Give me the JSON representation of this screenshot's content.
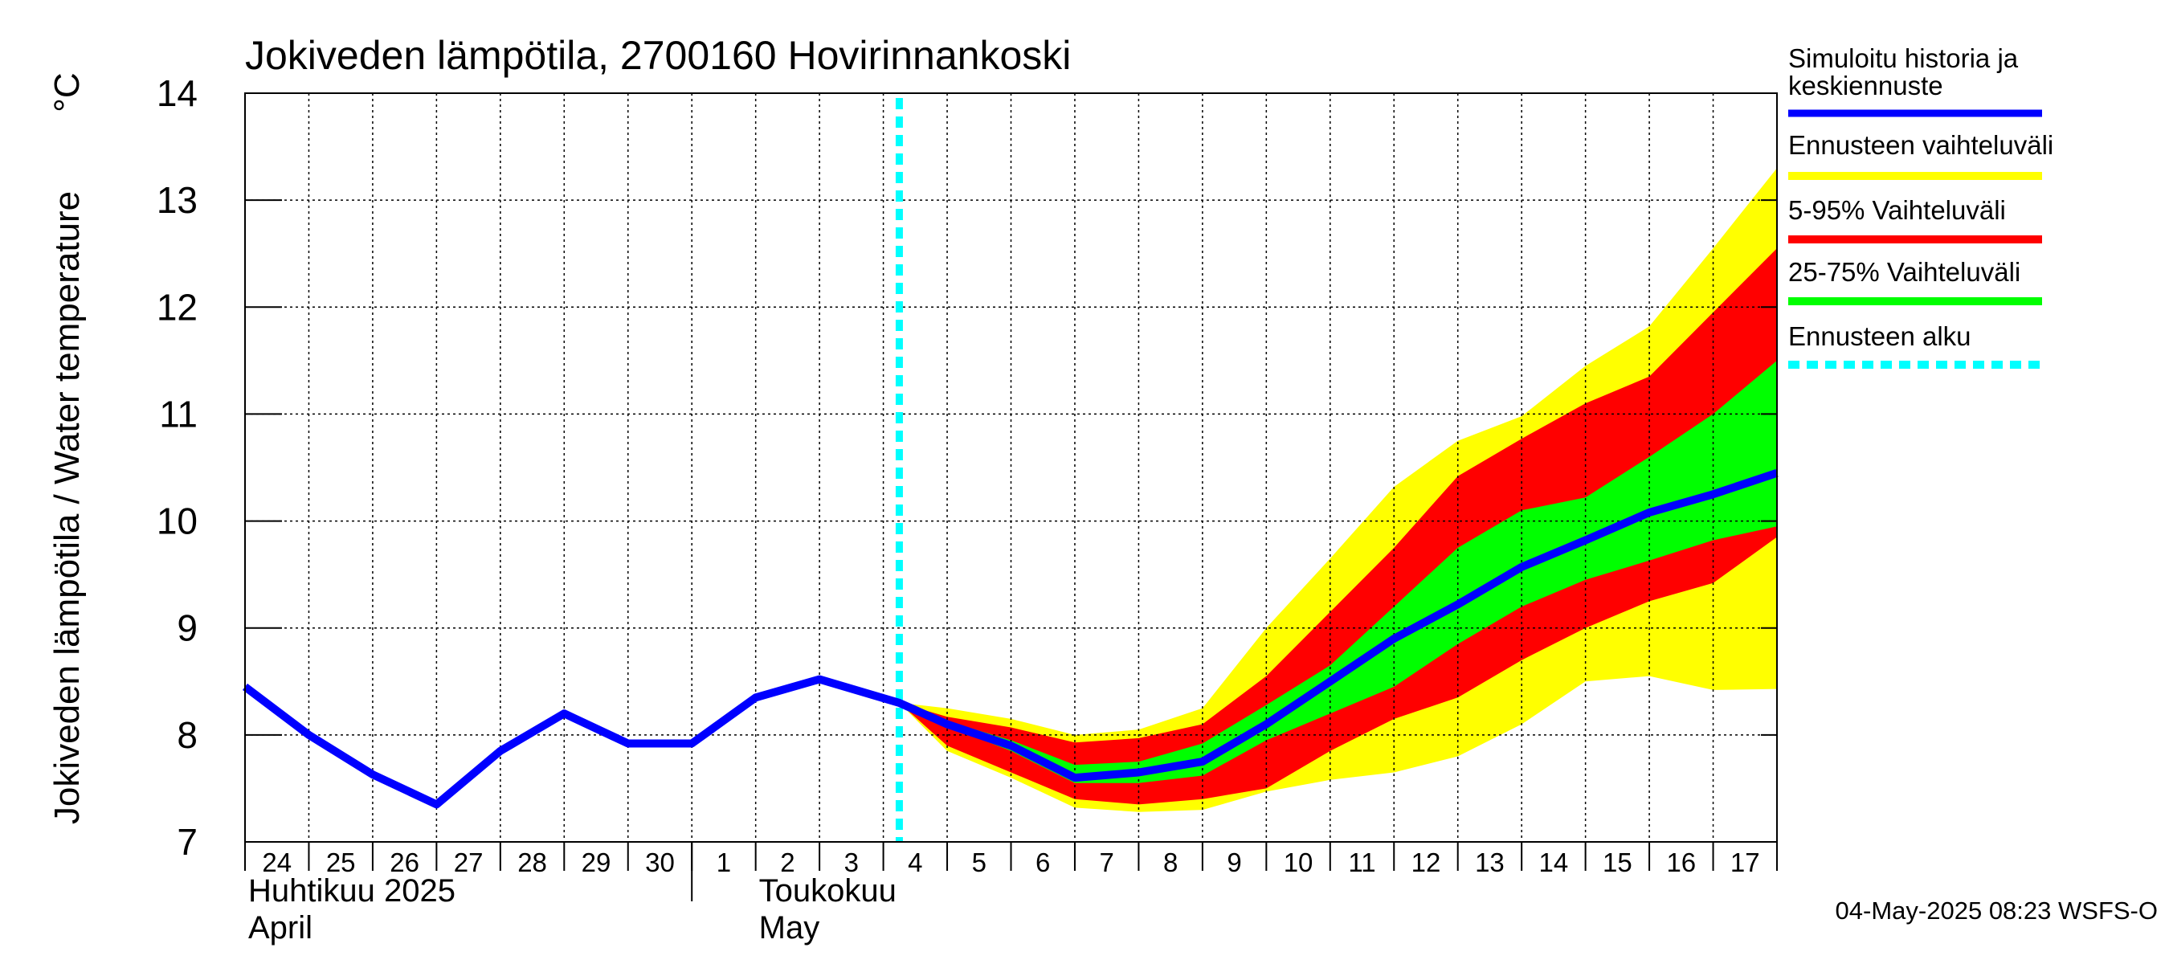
{
  "chart_data": {
    "type": "area",
    "title": "Jokiveden lämpötila, 2700160 Hovirinnankoski",
    "ylabel": "Jokiveden lämpötila / Water temperature",
    "yunit": "°C",
    "ylim": [
      7,
      14
    ],
    "yticks": [
      "7",
      "8",
      "9",
      "10",
      "11",
      "12",
      "13",
      "14"
    ],
    "xlim": [
      0,
      24
    ],
    "xtick_labels": [
      "24",
      "25",
      "26",
      "27",
      "28",
      "29",
      "30",
      "1",
      "2",
      "3",
      "4",
      "5",
      "6",
      "7",
      "8",
      "9",
      "10",
      "11",
      "12",
      "13",
      "14",
      "15",
      "16",
      "17"
    ],
    "month_labels": [
      {
        "line1": "Huhtikuu  2025",
        "line2": "April",
        "at_day": 0
      },
      {
        "line1": "Toukokuu",
        "line2": "May",
        "at_day": 8
      }
    ],
    "month_separator_day": 7,
    "grid": true,
    "forecast_start_day": 10.25,
    "history": {
      "x": [
        0,
        1,
        2,
        3,
        4,
        5,
        6,
        7,
        8,
        9,
        10.25
      ],
      "y": [
        8.45,
        8.0,
        7.63,
        7.35,
        7.85,
        8.2,
        7.92,
        7.92,
        8.35,
        8.52,
        8.3
      ]
    },
    "forecast_days": [
      10.25,
      11,
      12,
      13,
      14,
      15,
      16,
      17,
      18,
      19,
      20,
      21,
      22,
      23,
      24
    ],
    "median": [
      8.3,
      8.1,
      7.9,
      7.6,
      7.65,
      7.75,
      8.1,
      8.5,
      8.9,
      9.22,
      9.57,
      9.82,
      10.08,
      10.25,
      10.45
    ],
    "p25": [
      8.3,
      8.08,
      7.85,
      7.55,
      7.55,
      7.62,
      7.95,
      8.2,
      8.45,
      8.85,
      9.2,
      9.45,
      9.63,
      9.82,
      9.95
    ],
    "p75": [
      8.3,
      8.13,
      7.95,
      7.72,
      7.75,
      7.92,
      8.28,
      8.65,
      9.2,
      9.75,
      10.1,
      10.22,
      10.6,
      11.0,
      11.5
    ],
    "p05": [
      8.3,
      7.9,
      7.65,
      7.4,
      7.35,
      7.4,
      7.5,
      7.85,
      8.15,
      8.35,
      8.7,
      9.0,
      9.25,
      9.42,
      9.85
    ],
    "p95": [
      8.3,
      8.17,
      8.07,
      7.93,
      7.97,
      8.1,
      8.55,
      9.15,
      9.75,
      10.42,
      10.77,
      11.1,
      11.35,
      11.95,
      12.55
    ],
    "min": [
      8.3,
      7.85,
      7.6,
      7.32,
      7.28,
      7.3,
      7.47,
      7.58,
      7.65,
      7.8,
      8.1,
      8.5,
      8.55,
      8.42,
      8.43
    ],
    "max": [
      8.3,
      8.25,
      8.15,
      8.0,
      8.05,
      8.25,
      9.0,
      9.65,
      10.32,
      10.75,
      10.98,
      11.45,
      11.82,
      12.55,
      13.3
    ],
    "legend": [
      {
        "label": "Simuloitu historia ja keskiennuste",
        "line1": "Simuloitu historia ja",
        "line2": "keskiennuste",
        "color": "#0000ff",
        "style": "solid"
      },
      {
        "label": "Ennusteen vaihteluväli",
        "color": "#ffff00",
        "style": "solid"
      },
      {
        "label": "5-95% Vaihteluväli",
        "color": "#ff0000",
        "style": "solid"
      },
      {
        "label": "25-75% Vaihteluväli",
        "color": "#00ff00",
        "style": "solid"
      },
      {
        "label": "Ennusteen alku",
        "color": "#00ffff",
        "style": "dashed"
      }
    ],
    "legend_position": "right",
    "colors": {
      "median": "#0000ff",
      "range": "#ffff00",
      "p05_95": "#ff0000",
      "p25_75": "#00ff00",
      "forecast_start": "#00ffff"
    },
    "footer": "04-May-2025 08:23 WSFS-O"
  }
}
